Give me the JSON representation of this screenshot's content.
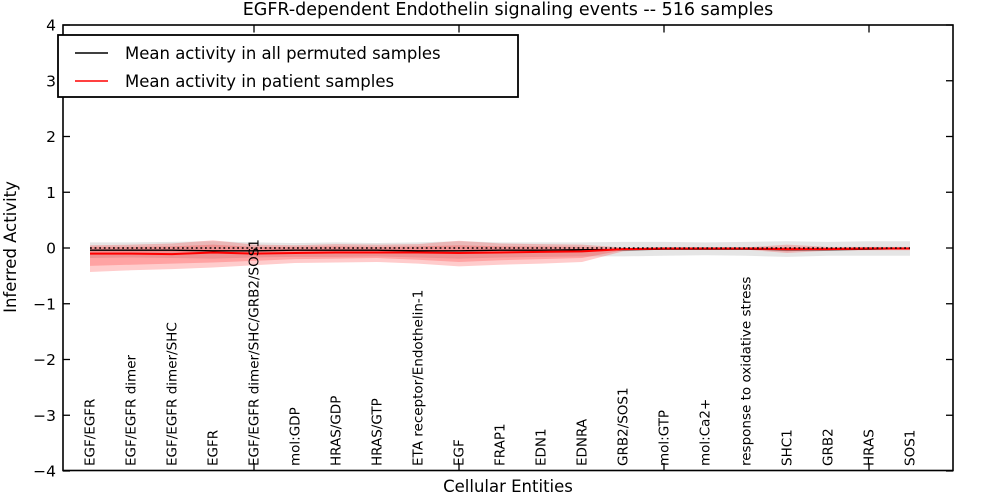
{
  "figure": {
    "title": "EGFR-dependent Endothelin signaling events -- 516 samples",
    "xlabel": "Cellular Entities",
    "ylabel": "Inferred Activity",
    "legend": [
      {
        "label": "Mean activity in all permuted samples",
        "color": "#000000"
      },
      {
        "label": "Mean activity in patient samples",
        "color": "#ff0000"
      }
    ]
  },
  "chart_data": {
    "type": "line",
    "title": "EGFR-dependent Endothelin signaling events -- 516 samples",
    "xlabel": "Cellular Entities",
    "ylabel": "Inferred Activity",
    "ylim": [
      -4,
      4
    ],
    "yticks": [
      -4,
      -3,
      -2,
      -1,
      0,
      1,
      2,
      3,
      4
    ],
    "xtick_marks_at_indices": [
      4,
      9,
      14,
      19
    ],
    "grid": false,
    "legend_position": "upper left",
    "zero_line": 0,
    "categories": [
      "EGF/EGFR",
      "EGF/EGFR dimer",
      "EGF/EGFR dimer/SHC",
      "EGFR",
      "EGF/EGFR dimer/SHC/GRB2/SOS1",
      "mol:GDP",
      "HRAS/GDP",
      "HRAS/GTP",
      "ETA receptor/Endothelin-1",
      "EGF",
      "FRAP1",
      "EDN1",
      "EDNRA",
      "GRB2/SOS1",
      "mol:GTP",
      "mol:Ca2+",
      "response to oxidative stress",
      "SHC1",
      "GRB2",
      "HRAS",
      "SOS1"
    ],
    "series": [
      {
        "name": "Mean activity in all permuted samples",
        "color": "#000000",
        "style": "solid",
        "values": [
          -0.04,
          -0.04,
          -0.04,
          -0.05,
          -0.05,
          -0.04,
          -0.04,
          -0.04,
          -0.05,
          -0.05,
          -0.04,
          -0.04,
          -0.03,
          -0.03,
          -0.02,
          -0.02,
          -0.02,
          -0.03,
          -0.03,
          -0.02,
          -0.01
        ]
      },
      {
        "name": "Mean activity in patient samples",
        "color": "#ff0000",
        "style": "solid",
        "values": [
          -0.1,
          -0.1,
          -0.11,
          -0.08,
          -0.1,
          -0.09,
          -0.08,
          -0.08,
          -0.08,
          -0.09,
          -0.08,
          -0.07,
          -0.06,
          -0.02,
          -0.01,
          -0.01,
          -0.01,
          -0.02,
          -0.02,
          -0.01,
          -0.01
        ]
      },
      {
        "name": "zero reference (dotted)",
        "color": "#000000",
        "style": "dotted",
        "values": [
          0,
          0,
          0,
          0,
          0,
          0,
          0,
          0,
          0,
          0,
          0,
          0,
          0,
          0,
          0,
          0,
          0,
          0,
          0,
          0,
          0
        ]
      }
    ],
    "bands": [
      {
        "name": "permuted-samples-spread",
        "fill": "rgba(0,0,0,0.10)",
        "upper": [
          0.1,
          0.1,
          0.11,
          0.12,
          0.1,
          0.09,
          0.1,
          0.09,
          0.1,
          0.12,
          0.1,
          0.1,
          0.1,
          0.11,
          0.11,
          0.1,
          0.11,
          0.12,
          0.11,
          0.12,
          0.12
        ],
        "lower": [
          -0.18,
          -0.17,
          -0.18,
          -0.19,
          -0.17,
          -0.16,
          -0.16,
          -0.15,
          -0.17,
          -0.19,
          -0.17,
          -0.16,
          -0.15,
          -0.15,
          -0.14,
          -0.13,
          -0.14,
          -0.16,
          -0.14,
          -0.14,
          -0.14
        ]
      },
      {
        "name": "patient-samples-spread-outer",
        "fill": "rgba(255,0,0,0.20)",
        "upper": [
          0.05,
          0.06,
          0.08,
          0.14,
          0.06,
          0.05,
          0.07,
          0.06,
          0.07,
          0.13,
          0.08,
          0.07,
          0.06,
          0.01,
          0.0,
          0.0,
          0.01,
          0.06,
          0.02,
          0.02,
          0.02
        ],
        "lower": [
          -0.43,
          -0.4,
          -0.38,
          -0.35,
          -0.31,
          -0.27,
          -0.26,
          -0.25,
          -0.28,
          -0.33,
          -0.3,
          -0.28,
          -0.25,
          -0.06,
          -0.02,
          -0.02,
          -0.03,
          -0.09,
          -0.05,
          -0.04,
          -0.04
        ]
      },
      {
        "name": "patient-samples-spread-inner",
        "fill": "rgba(255,0,0,0.20)",
        "upper": [
          0.02,
          0.02,
          0.03,
          0.06,
          0.02,
          0.02,
          0.03,
          0.02,
          0.03,
          0.05,
          0.03,
          0.03,
          0.02,
          0.0,
          0.0,
          0.0,
          0.0,
          0.02,
          0.01,
          0.01,
          0.01
        ],
        "lower": [
          -0.32,
          -0.3,
          -0.28,
          -0.26,
          -0.23,
          -0.2,
          -0.19,
          -0.18,
          -0.21,
          -0.25,
          -0.22,
          -0.2,
          -0.18,
          -0.04,
          -0.01,
          -0.01,
          -0.02,
          -0.06,
          -0.03,
          -0.03,
          -0.03
        ]
      }
    ]
  }
}
